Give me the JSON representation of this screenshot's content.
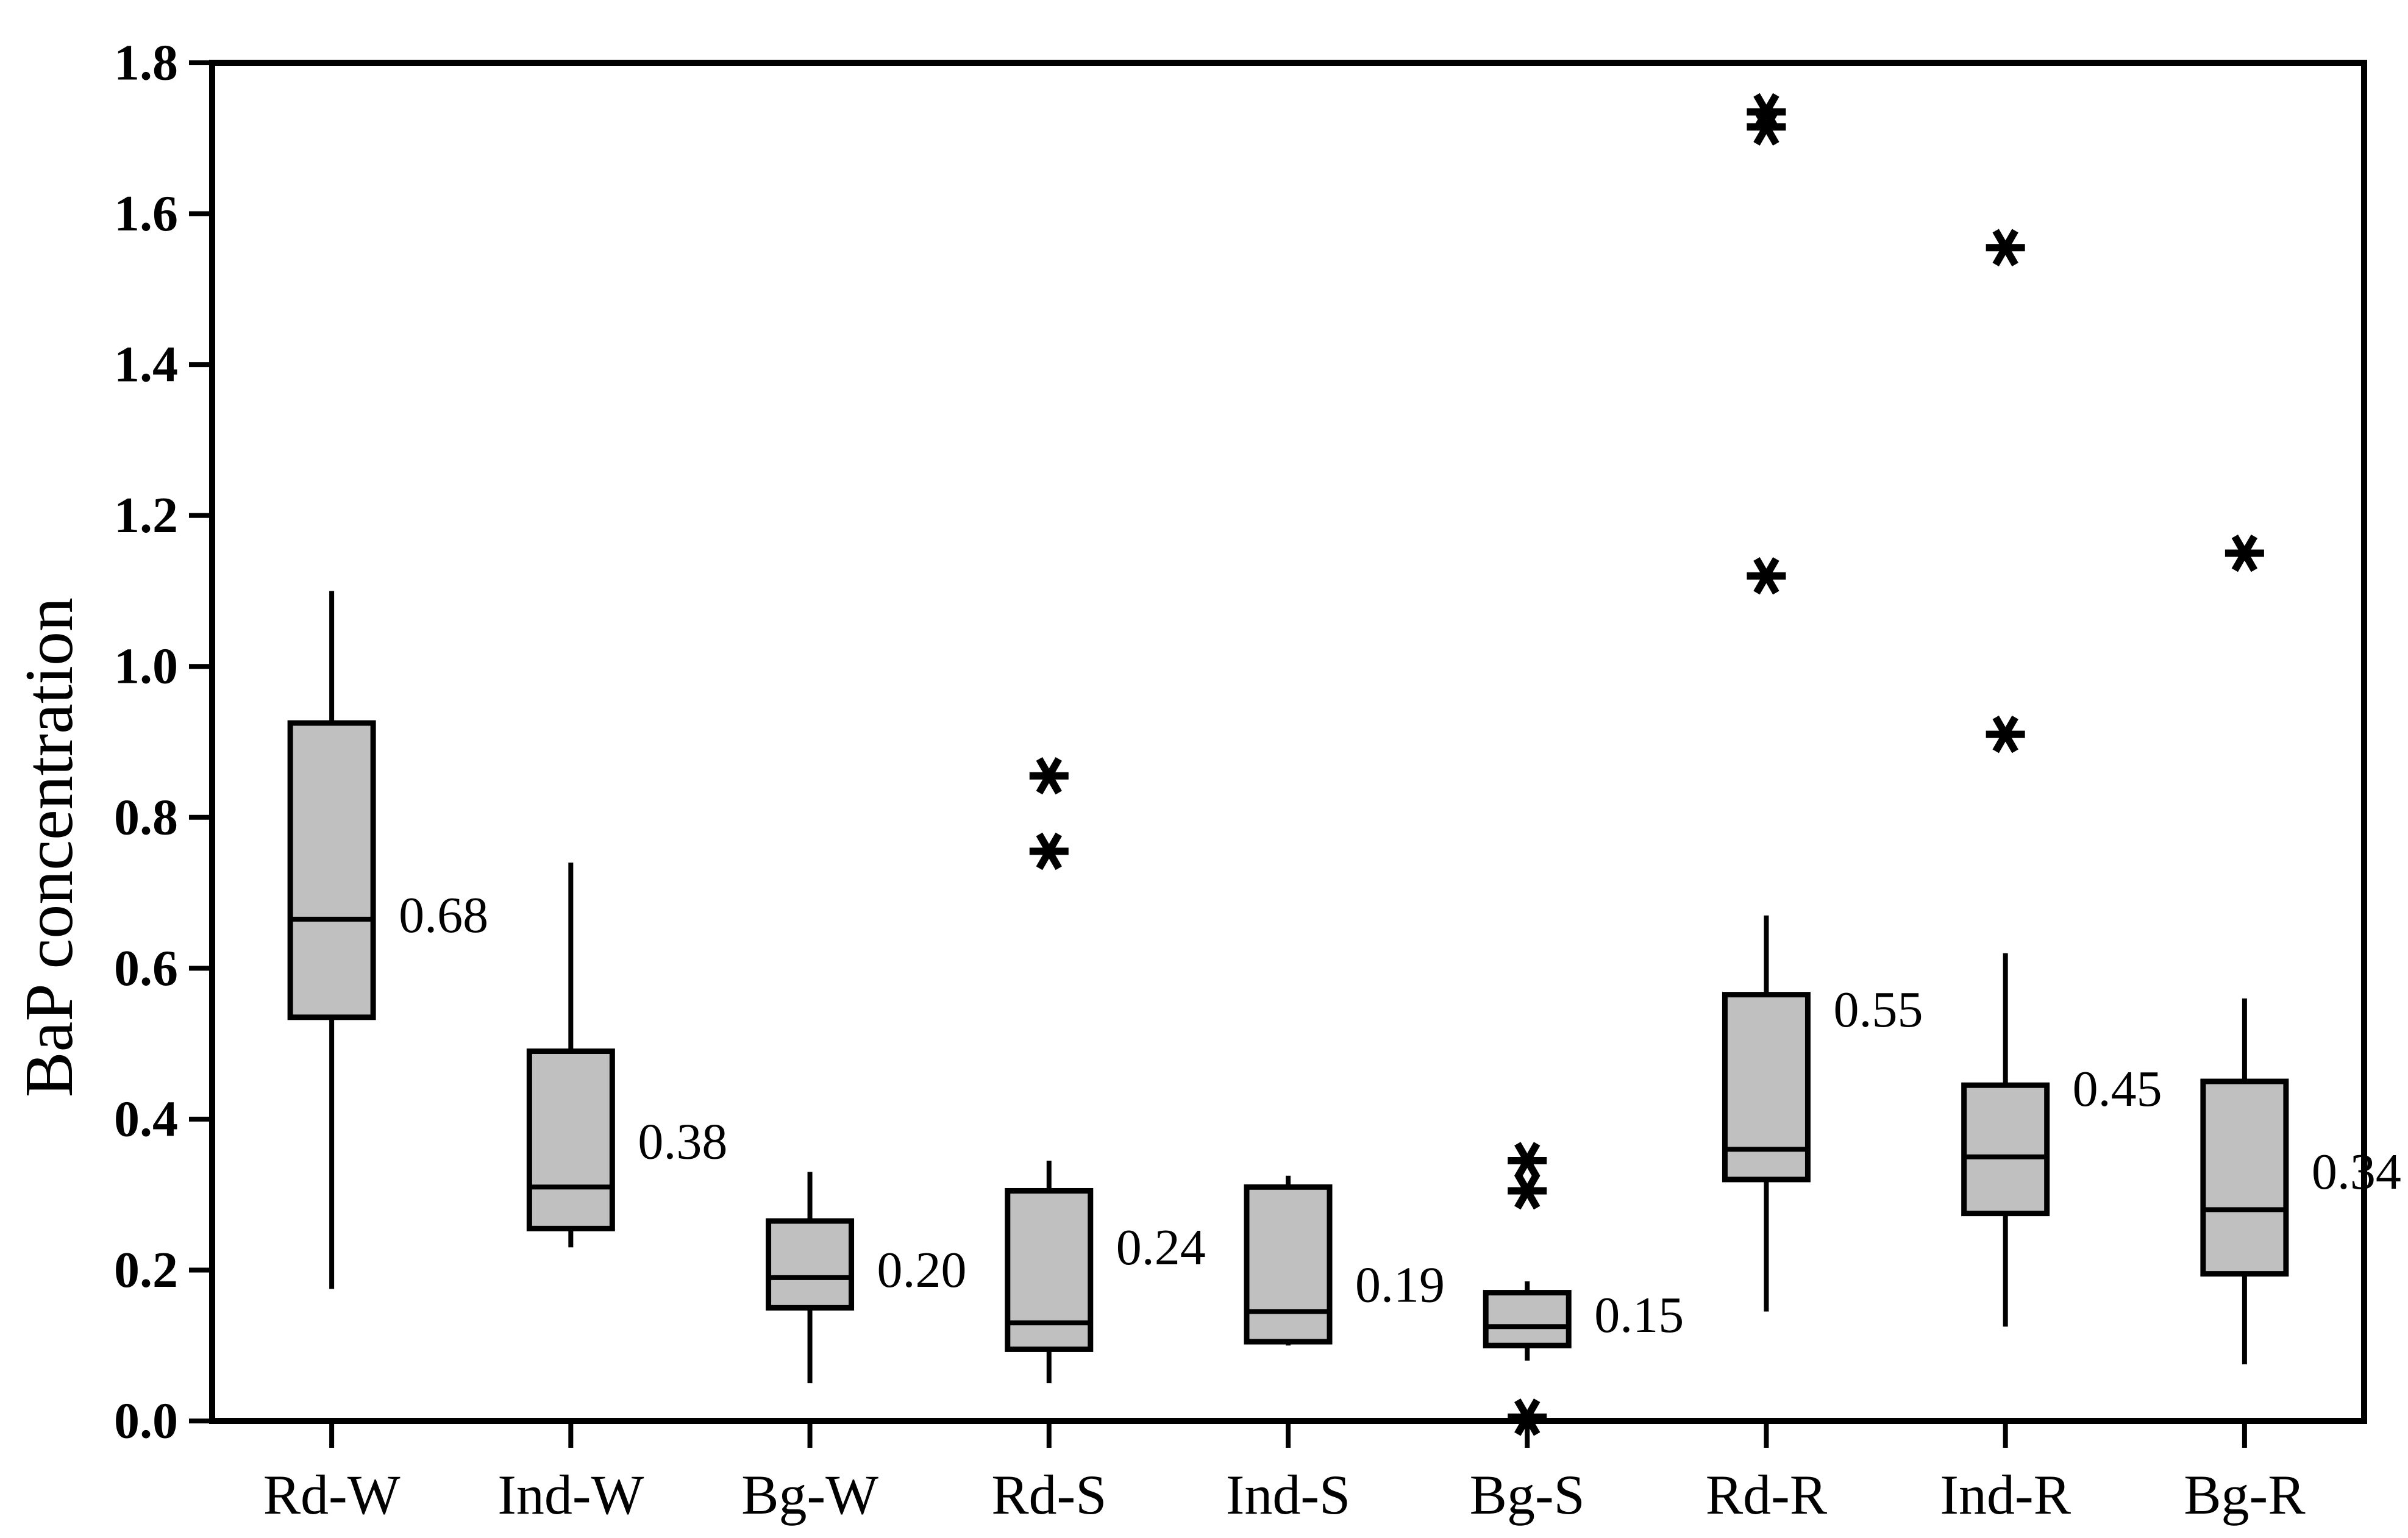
{
  "colors": {
    "box_fill": "#c0c0c0",
    "stroke": "#000000",
    "background": "#ffffff"
  },
  "chart_data": {
    "type": "boxplot",
    "title": "",
    "xlabel": "",
    "ylabel": "BaP concentration",
    "ylim": [
      0,
      1.8
    ],
    "grid": false,
    "legend": null,
    "frame": true,
    "yticks": [
      {
        "value": 0.0,
        "label": "0.0"
      },
      {
        "value": 0.2,
        "label": "0.2"
      },
      {
        "value": 0.4,
        "label": "0.4"
      },
      {
        "value": 0.6,
        "label": "0.6"
      },
      {
        "value": 0.8,
        "label": "0.8"
      },
      {
        "value": 1.0,
        "label": "1.0"
      },
      {
        "value": 1.2,
        "label": "1.2"
      },
      {
        "value": 1.4,
        "label": "1.4"
      },
      {
        "value": 1.6,
        "label": "1.6"
      },
      {
        "value": 1.8,
        "label": "1.8"
      }
    ],
    "categories": [
      "Rd-W",
      "Ind-W",
      "Bg-W",
      "Rd-S",
      "Ind-S",
      "Bg-S",
      "Rd-R",
      "Ind-R",
      "Bg-R"
    ],
    "boxes": [
      {
        "category": "Rd-W",
        "whisker_low": 0.175,
        "q1": 0.535,
        "median": 0.665,
        "q3": 0.925,
        "whisker_high": 1.1,
        "outliers": [],
        "median_label": "0.68",
        "label_value": 0.67
      },
      {
        "category": "Ind-W",
        "whisker_low": 0.23,
        "q1": 0.255,
        "median": 0.31,
        "q3": 0.49,
        "whisker_high": 0.74,
        "outliers": [],
        "median_label": "0.38",
        "label_value": 0.37
      },
      {
        "category": "Bg-W",
        "whisker_low": 0.05,
        "q1": 0.15,
        "median": 0.19,
        "q3": 0.265,
        "whisker_high": 0.33,
        "outliers": [],
        "median_label": "0.20",
        "label_value": 0.2
      },
      {
        "category": "Rd-S",
        "whisker_low": 0.05,
        "q1": 0.095,
        "median": 0.13,
        "q3": 0.305,
        "whisker_high": 0.345,
        "outliers": [
          0.855,
          0.755
        ],
        "median_label": "0.24",
        "label_value": 0.23
      },
      {
        "category": "Ind-S",
        "whisker_low": 0.1,
        "q1": 0.105,
        "median": 0.145,
        "q3": 0.31,
        "whisker_high": 0.325,
        "outliers": [],
        "median_label": "0.19",
        "label_value": 0.18
      },
      {
        "category": "Bg-S",
        "whisker_low": 0.08,
        "q1": 0.1,
        "median": 0.125,
        "q3": 0.17,
        "whisker_high": 0.185,
        "outliers": [
          0.345,
          0.305,
          0.005
        ],
        "median_label": "0.15",
        "label_value": 0.14
      },
      {
        "category": "Rd-R",
        "whisker_low": 0.145,
        "q1": 0.32,
        "median": 0.36,
        "q3": 0.565,
        "whisker_high": 0.67,
        "outliers": [
          1.735,
          1.715,
          1.12
        ],
        "median_label": "0.55",
        "label_value": 0.545
      },
      {
        "category": "Ind-R",
        "whisker_low": 0.125,
        "q1": 0.275,
        "median": 0.35,
        "q3": 0.445,
        "whisker_high": 0.62,
        "outliers": [
          1.555,
          0.91
        ],
        "median_label": "0.45",
        "label_value": 0.44
      },
      {
        "category": "Bg-R",
        "whisker_low": 0.075,
        "q1": 0.195,
        "median": 0.28,
        "q3": 0.45,
        "whisker_high": 0.56,
        "outliers": [
          1.15
        ],
        "median_label": "0.34",
        "label_value": 0.33
      }
    ]
  }
}
